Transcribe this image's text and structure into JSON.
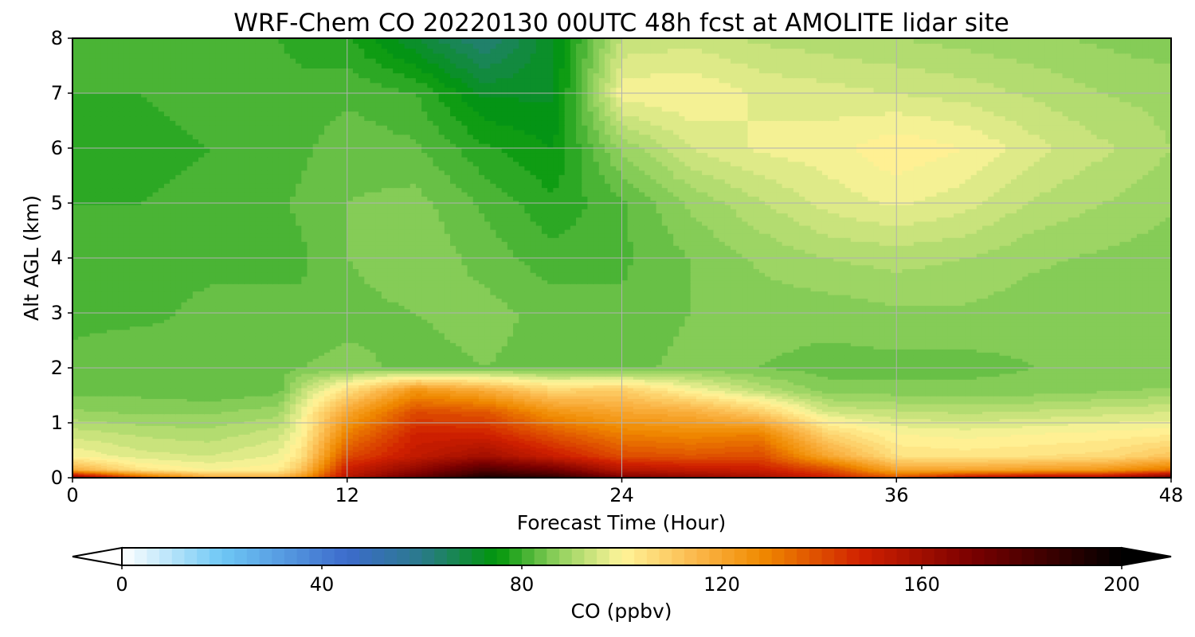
{
  "chart_data": {
    "type": "heatmap",
    "title": "WRF-Chem CO  20220130 00UTC 48h fcst at AMOLITE lidar site",
    "xlabel": "Forecast Time (Hour)",
    "ylabel": "Alt AGL (km)",
    "xlim": [
      0,
      48
    ],
    "ylim": [
      0,
      8
    ],
    "xticks": [
      "0",
      "12",
      "24",
      "36",
      "48"
    ],
    "yticks": [
      "0",
      "1",
      "2",
      "3",
      "4",
      "5",
      "6",
      "7",
      "8"
    ],
    "grid": true,
    "colorbar": {
      "label": "CO  (ppbv)",
      "range": [
        0,
        200
      ],
      "ticks": [
        "0",
        "40",
        "80",
        "120",
        "160",
        "200"
      ],
      "extend": "both",
      "anchors": [
        {
          "v": 0,
          "c": "#ffffff"
        },
        {
          "v": 20,
          "c": "#6ec8f5"
        },
        {
          "v": 45,
          "c": "#3d6bcc"
        },
        {
          "v": 60,
          "c": "#2a7a8a"
        },
        {
          "v": 75,
          "c": "#00960a"
        },
        {
          "v": 87,
          "c": "#8ed05c"
        },
        {
          "v": 100,
          "c": "#fff59a"
        },
        {
          "v": 115,
          "c": "#fbb74a"
        },
        {
          "v": 128,
          "c": "#f08a00"
        },
        {
          "v": 148,
          "c": "#d02000"
        },
        {
          "v": 170,
          "c": "#7a0000"
        },
        {
          "v": 200,
          "c": "#000000"
        }
      ]
    },
    "field": {
      "x": [
        0,
        3,
        6,
        9,
        10,
        12,
        15,
        18,
        21,
        24,
        27,
        30,
        33,
        36,
        39,
        42,
        45,
        48
      ],
      "y": [
        0,
        0.15,
        0.4,
        0.8,
        1.2,
        1.6,
        2.0,
        3.0,
        4.0,
        5.0,
        6.0,
        7.0,
        8.0
      ],
      "values": [
        [
          170,
          140,
          120,
          118,
          125,
          155,
          175,
          195,
          190,
          170,
          165,
          160,
          150,
          140,
          155,
          160,
          160,
          175
        ],
        [
          118,
          104,
          100,
          102,
          112,
          150,
          165,
          180,
          172,
          155,
          152,
          150,
          140,
          120,
          120,
          122,
          124,
          132
        ],
        [
          100,
          96,
          95,
          98,
          105,
          140,
          152,
          160,
          150,
          140,
          138,
          140,
          120,
          105,
          104,
          105,
          106,
          112
        ],
        [
          94,
          92,
          91,
          94,
          100,
          130,
          148,
          148,
          138,
          130,
          128,
          130,
          108,
          100,
          99,
          100,
          101,
          102
        ],
        [
          88,
          87,
          87,
          89,
          98,
          120,
          140,
          138,
          125,
          120,
          118,
          110,
          95,
          93,
          92,
          93,
          94,
          95
        ],
        [
          84,
          84,
          83,
          84,
          92,
          105,
          125,
          118,
          108,
          110,
          100,
          92,
          86,
          86,
          86,
          86,
          87,
          88
        ],
        [
          83,
          84,
          83,
          84,
          85,
          86,
          84,
          85,
          84,
          84,
          86,
          85,
          84,
          84,
          84,
          85,
          85,
          85
        ],
        [
          82,
          82,
          83,
          83,
          83,
          84,
          85,
          86,
          84,
          83,
          85,
          86,
          86,
          87,
          87,
          86,
          86,
          85
        ],
        [
          82,
          82,
          82,
          82,
          82,
          85,
          87,
          84,
          81,
          82,
          85,
          88,
          90,
          91,
          90,
          88,
          87,
          86
        ],
        [
          80,
          80,
          81,
          82,
          83,
          85,
          86,
          82,
          78,
          82,
          88,
          92,
          96,
          98,
          96,
          92,
          90,
          88
        ],
        [
          79,
          79,
          80,
          81,
          82,
          84,
          83,
          78,
          75,
          88,
          95,
          98,
          99,
          102,
          100,
          96,
          93,
          90
        ],
        [
          80,
          80,
          81,
          81,
          81,
          82,
          80,
          72,
          72,
          99,
          100,
          97,
          96,
          95,
          94,
          92,
          90,
          89
        ],
        [
          82,
          80,
          80,
          80,
          79,
          78,
          70,
          62,
          72,
          93,
          94,
          92,
          91,
          90,
          89,
          88,
          87,
          86
        ]
      ]
    }
  }
}
